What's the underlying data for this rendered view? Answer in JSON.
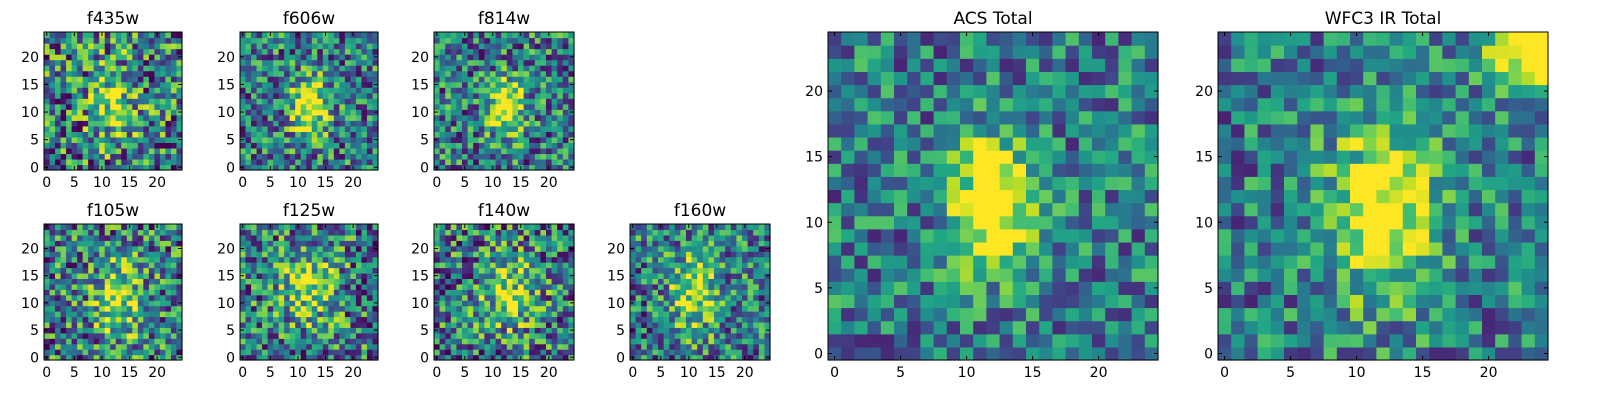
{
  "chart_data": [
    {
      "type": "heatmap",
      "title": "f435w",
      "xlim": [
        0,
        24
      ],
      "ylim": [
        0,
        24
      ],
      "xticks": [
        0,
        5,
        10,
        15,
        20
      ],
      "yticks": [
        0,
        5,
        10,
        15,
        20
      ],
      "colormap": "viridis",
      "blob": {
        "cx": 12,
        "cy": 12,
        "sx": 3.0,
        "sy": 5.0,
        "amp": 0.45,
        "noise": 0.6
      },
      "seed": 11
    },
    {
      "type": "heatmap",
      "title": "f606w",
      "xlim": [
        0,
        24
      ],
      "ylim": [
        0,
        24
      ],
      "xticks": [
        0,
        5,
        10,
        15,
        20
      ],
      "yticks": [
        0,
        5,
        10,
        15,
        20
      ],
      "colormap": "viridis",
      "blob": {
        "cx": 12,
        "cy": 11,
        "sx": 2.2,
        "sy": 3.5,
        "amp": 0.75,
        "noise": 0.5
      },
      "seed": 23
    },
    {
      "type": "heatmap",
      "title": "f814w",
      "xlim": [
        0,
        24
      ],
      "ylim": [
        0,
        24
      ],
      "xticks": [
        0,
        5,
        10,
        15,
        20
      ],
      "yticks": [
        0,
        5,
        10,
        15,
        20
      ],
      "colormap": "viridis",
      "blob": {
        "cx": 12.5,
        "cy": 11,
        "sx": 2.0,
        "sy": 3.5,
        "amp": 0.75,
        "noise": 0.5
      },
      "seed": 37
    },
    {
      "type": "heatmap",
      "title": "f105w",
      "xlim": [
        0,
        24
      ],
      "ylim": [
        0,
        24
      ],
      "xticks": [
        0,
        5,
        10,
        15,
        20
      ],
      "yticks": [
        0,
        5,
        10,
        15,
        20
      ],
      "colormap": "viridis",
      "blob": {
        "cx": 13,
        "cy": 11,
        "sx": 3.0,
        "sy": 5.0,
        "amp": 0.5,
        "noise": 0.55
      },
      "seed": 41
    },
    {
      "type": "heatmap",
      "title": "f125w",
      "xlim": [
        0,
        24
      ],
      "ylim": [
        0,
        24
      ],
      "xticks": [
        0,
        5,
        10,
        15,
        20
      ],
      "yticks": [
        0,
        5,
        10,
        15,
        20
      ],
      "colormap": "viridis",
      "blob": {
        "cx": 12,
        "cy": 13,
        "sx": 3.5,
        "sy": 5.0,
        "amp": 0.45,
        "noise": 0.55
      },
      "seed": 53
    },
    {
      "type": "heatmap",
      "title": "f140w",
      "xlim": [
        0,
        24
      ],
      "ylim": [
        0,
        24
      ],
      "xticks": [
        0,
        5,
        10,
        15,
        20
      ],
      "yticks": [
        0,
        5,
        10,
        15,
        20
      ],
      "colormap": "viridis",
      "blob": {
        "cx": 13,
        "cy": 12,
        "sx": 3.5,
        "sy": 4.5,
        "amp": 0.45,
        "noise": 0.55
      },
      "seed": 67
    },
    {
      "type": "heatmap",
      "title": "f160w",
      "xlim": [
        0,
        24
      ],
      "ylim": [
        0,
        24
      ],
      "xticks": [
        0,
        5,
        10,
        15,
        20
      ],
      "yticks": [
        0,
        5,
        10,
        15,
        20
      ],
      "colormap": "viridis",
      "blob": {
        "cx": 11,
        "cy": 12,
        "sx": 3.0,
        "sy": 5.0,
        "amp": 0.5,
        "noise": 0.5
      },
      "seed": 79
    },
    {
      "type": "heatmap",
      "title": "ACS Total",
      "xlim": [
        0,
        24
      ],
      "ylim": [
        0,
        24
      ],
      "xticks": [
        0,
        5,
        10,
        15,
        20
      ],
      "yticks": [
        0,
        5,
        10,
        15,
        20
      ],
      "colormap": "viridis",
      "blob": {
        "cx": 12,
        "cy": 11.5,
        "sx": 2.0,
        "sy": 3.5,
        "amp": 0.85,
        "noise": 0.4
      },
      "seed": 97
    },
    {
      "type": "heatmap",
      "title": "WFC3 IR Total",
      "xlim": [
        0,
        24
      ],
      "ylim": [
        0,
        24
      ],
      "xticks": [
        0,
        5,
        10,
        15,
        20
      ],
      "yticks": [
        0,
        5,
        10,
        15,
        20
      ],
      "colormap": "viridis",
      "blob": {
        "cx": 12,
        "cy": 11,
        "sx": 2.8,
        "sy": 4.5,
        "amp": 0.7,
        "noise": 0.4
      },
      "extra_blob": {
        "cx": 23,
        "cy": 24,
        "sx": 2.5,
        "sy": 2.5,
        "amp": 0.8
      },
      "seed": 113
    }
  ]
}
